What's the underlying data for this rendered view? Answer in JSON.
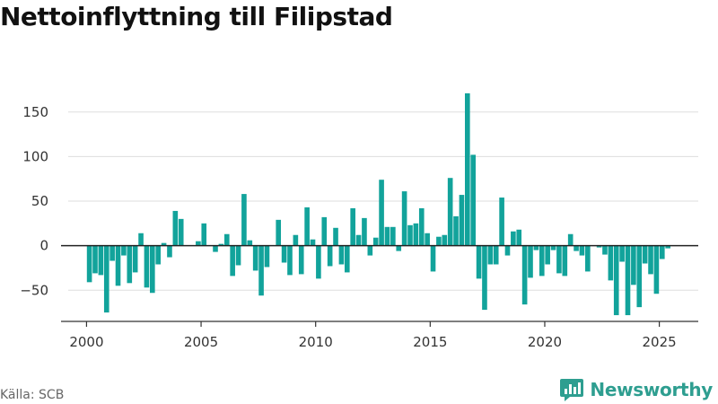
{
  "header": {
    "title": "Nettoinflyttning till Filipstad"
  },
  "footer": {
    "source": "Källa: SCB",
    "brand": "Newsworthy"
  },
  "colors": {
    "bar": "#12a39b",
    "zero_line": "#222222",
    "grid": "#dddddd",
    "brand": "#2e9e90"
  },
  "icons": {
    "brand": "bar-chart-speech-bubble-icon"
  },
  "chart_data": {
    "type": "bar",
    "title": "Nettoinflyttning till Filipstad",
    "xlabel": "",
    "ylabel": "",
    "ylim": [
      -85,
      180
    ],
    "xlim": [
      1999.2,
      2026.7
    ],
    "yticks": [
      -50,
      0,
      50,
      100,
      150
    ],
    "xticks": [
      2000,
      2005,
      2010,
      2015,
      2020,
      2025
    ],
    "grid": true,
    "bar_width_years": 0.22,
    "x": [
      2000.125,
      2000.375,
      2000.625,
      2000.875,
      2001.125,
      2001.375,
      2001.625,
      2001.875,
      2002.125,
      2002.375,
      2002.625,
      2002.875,
      2003.125,
      2003.375,
      2003.625,
      2003.875,
      2004.125,
      2004.375,
      2004.625,
      2004.875,
      2005.125,
      2005.375,
      2005.625,
      2005.875,
      2006.125,
      2006.375,
      2006.625,
      2006.875,
      2007.125,
      2007.375,
      2007.625,
      2007.875,
      2008.125,
      2008.375,
      2008.625,
      2008.875,
      2009.125,
      2009.375,
      2009.625,
      2009.875,
      2010.125,
      2010.375,
      2010.625,
      2010.875,
      2011.125,
      2011.375,
      2011.625,
      2011.875,
      2012.125,
      2012.375,
      2012.625,
      2012.875,
      2013.125,
      2013.375,
      2013.625,
      2013.875,
      2014.125,
      2014.375,
      2014.625,
      2014.875,
      2015.125,
      2015.375,
      2015.625,
      2015.875,
      2016.125,
      2016.375,
      2016.625,
      2016.875,
      2017.125,
      2017.375,
      2017.625,
      2017.875,
      2018.125,
      2018.375,
      2018.625,
      2018.875,
      2019.125,
      2019.375,
      2019.625,
      2019.875,
      2020.125,
      2020.375,
      2020.625,
      2020.875,
      2021.125,
      2021.375,
      2021.625,
      2021.875,
      2022.125,
      2022.375,
      2022.625,
      2022.875,
      2023.125,
      2023.375,
      2023.625,
      2023.875,
      2024.125,
      2024.375,
      2024.625,
      2024.875,
      2025.125,
      2025.375
    ],
    "values": [
      -41,
      -31,
      -33,
      -75,
      -17,
      -45,
      -11,
      -42,
      -30,
      14,
      -47,
      -53,
      -21,
      3,
      -13,
      39,
      30,
      0,
      0,
      5,
      25,
      0,
      -7,
      2,
      13,
      -34,
      -22,
      58,
      6,
      -28,
      -56,
      -24,
      0,
      29,
      -19,
      -33,
      12,
      -32,
      43,
      7,
      -37,
      32,
      -23,
      20,
      -21,
      -30,
      42,
      12,
      31,
      -11,
      9,
      74,
      21,
      21,
      -6,
      61,
      23,
      25,
      42,
      14,
      -29,
      10,
      12,
      76,
      33,
      57,
      171,
      102,
      -37,
      -72,
      -21,
      -21,
      54,
      -11,
      16,
      18,
      -66,
      -36,
      -5,
      -34,
      -21,
      -5,
      -31,
      -34,
      13,
      -6,
      -11,
      -29,
      0,
      -2,
      -10,
      -39,
      -78,
      -18,
      -78,
      -44,
      -69,
      -20,
      -32,
      -54,
      -15,
      -3
    ]
  }
}
